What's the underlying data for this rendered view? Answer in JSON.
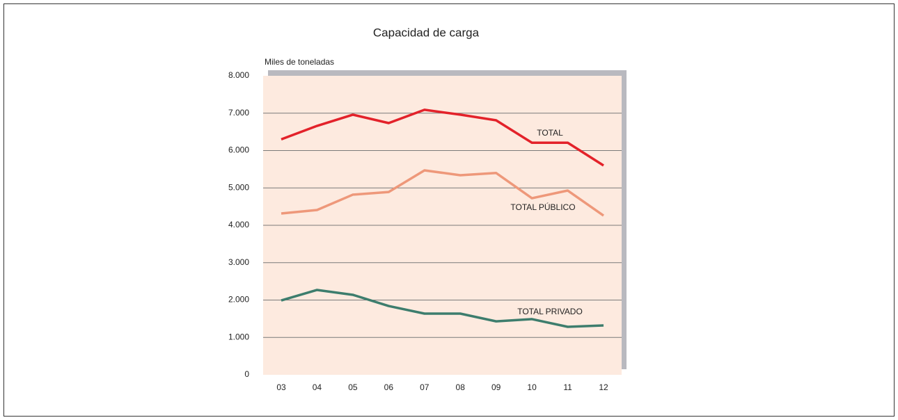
{
  "chart_data": {
    "type": "line",
    "title": "Capacidad de carga",
    "y_label": "Miles de toneladas",
    "categories": [
      "03",
      "04",
      "05",
      "06",
      "07",
      "08",
      "09",
      "10",
      "11",
      "12"
    ],
    "series": [
      {
        "name": "TOTAL",
        "color": "#e3222a",
        "values": [
          6300,
          6660,
          6960,
          6735,
          7090,
          6960,
          6810,
          6210,
          6210,
          5600
        ]
      },
      {
        "name": "TOTAL PÚBLICO",
        "color": "#ee987a",
        "values": [
          4316,
          4410,
          4820,
          4890,
          5470,
          5340,
          5400,
          4725,
          4930,
          4260
        ]
      },
      {
        "name": "TOTAL PRIVADO",
        "color": "#3d7d6d",
        "values": [
          1990,
          2270,
          2140,
          1840,
          1637,
          1637,
          1430,
          1490,
          1284,
          1320
        ]
      }
    ],
    "ylim": [
      0,
      8000
    ],
    "yticks": [
      0,
      {
        "value": 1000,
        "label": "1.000"
      },
      {
        "value": 2000,
        "label": "2.000"
      },
      {
        "value": 3000,
        "label": "3.000"
      },
      {
        "value": 4000,
        "label": "4.000"
      },
      {
        "value": 5000,
        "label": "5.000"
      },
      {
        "value": 6000,
        "label": "6.000"
      },
      {
        "value": 7000,
        "label": "7.000"
      },
      {
        "value": 8000,
        "label": "8.000"
      }
    ],
    "grid": true
  }
}
